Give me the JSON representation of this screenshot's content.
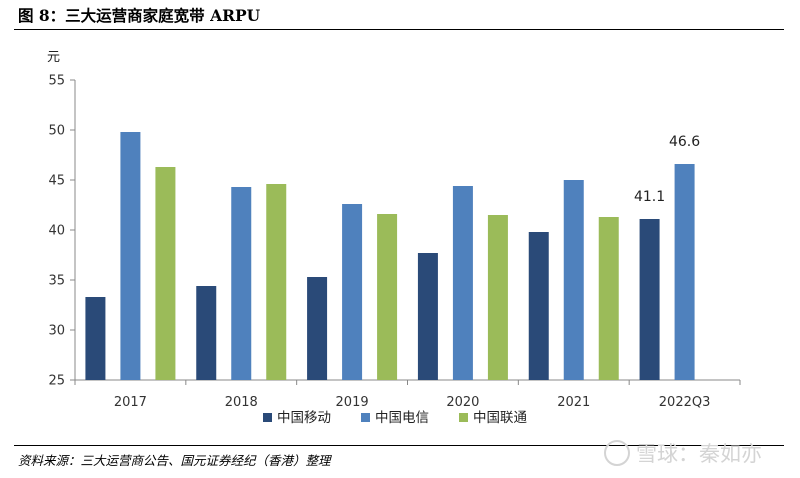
{
  "figure": {
    "title": "图 8：三大运营商家庭宽带 ARPU",
    "source": "资料来源：三大运营商公告、国元证券经纪（香港）整理",
    "watermark": "雪球：秦如亦"
  },
  "chart_data": {
    "type": "bar",
    "title": "图 8：三大运营商家庭宽带 ARPU",
    "ylabel": "元",
    "xlabel": "",
    "ylim": [
      25,
      55
    ],
    "yticks": [
      25,
      30,
      35,
      40,
      45,
      50,
      55
    ],
    "categories": [
      "2017",
      "2018",
      "2019",
      "2020",
      "2021",
      "2022Q3"
    ],
    "series": [
      {
        "name": "中国移动",
        "color": "#2a4a78",
        "values": [
          33.3,
          34.4,
          35.3,
          37.7,
          39.8,
          41.1
        ]
      },
      {
        "name": "中国电信",
        "color": "#4f81bd",
        "values": [
          49.8,
          44.3,
          42.6,
          44.4,
          45.0,
          46.6
        ]
      },
      {
        "name": "中国联通",
        "color": "#9bbb59",
        "values": [
          46.3,
          44.6,
          41.6,
          41.5,
          41.3,
          null
        ]
      }
    ],
    "data_labels": [
      {
        "series": 0,
        "index": 5,
        "text": "41.1"
      },
      {
        "series": 1,
        "index": 5,
        "text": "46.6"
      }
    ],
    "grid": false,
    "legend": "bottom"
  }
}
